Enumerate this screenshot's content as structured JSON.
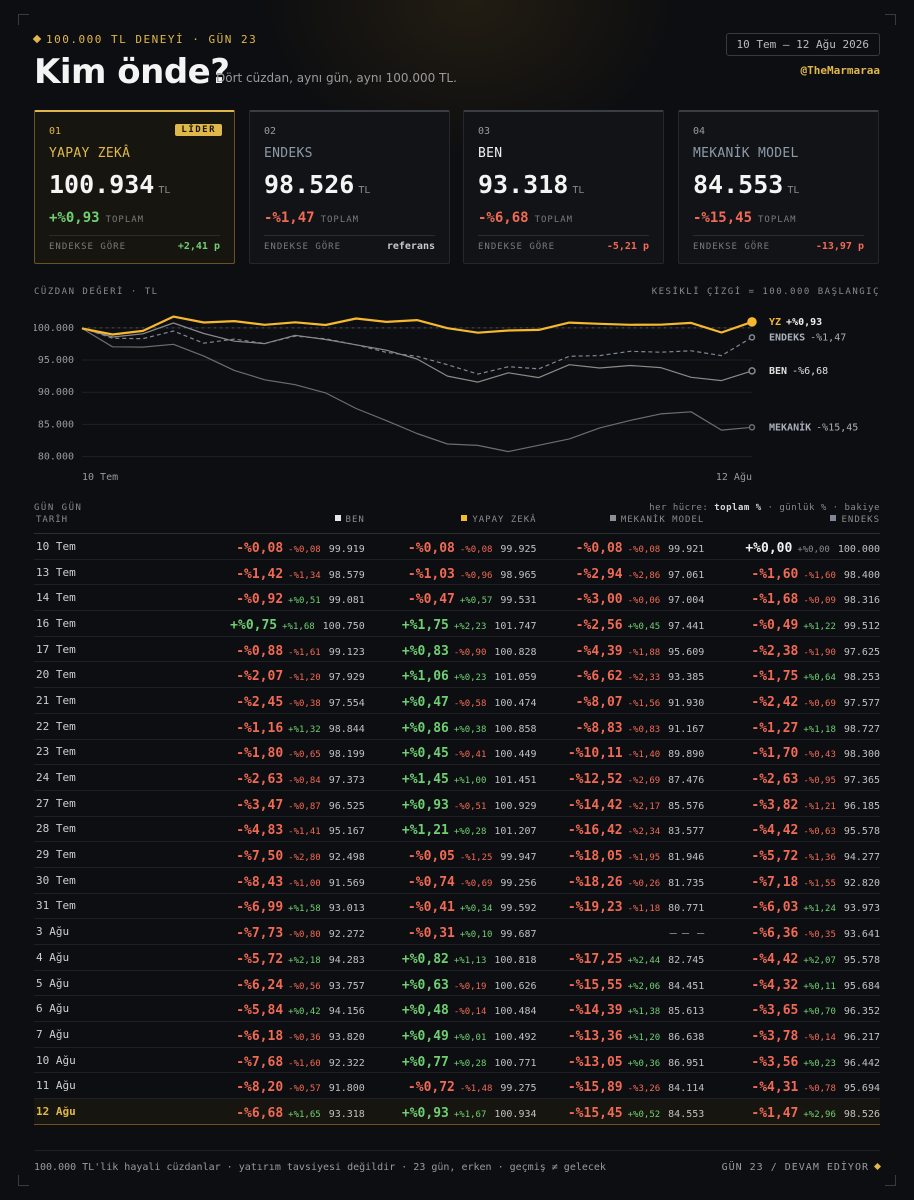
{
  "header": {
    "kicker": "100.000 TL DENEYİ · GÜN 23",
    "title": "Kim önde?",
    "subtitle": "Dört cüzdan, aynı gün, aynı 100.000 TL.",
    "date_range": "10 Tem – 12 Ağu 2026",
    "handle": "@TheMarmaraa"
  },
  "cards": [
    {
      "num": "01",
      "badge": "LİDER",
      "name": "YAPAY ZEKÂ",
      "value": "100.934",
      "unit": "TL",
      "pct": "+%0,93",
      "pct_label": "TOPLAM",
      "foot_label": "ENDEKSE GÖRE",
      "foot_value": "+2,41 p"
    },
    {
      "num": "02",
      "badge": "",
      "name": "ENDEKS",
      "value": "98.526",
      "unit": "TL",
      "pct": "-%1,47",
      "pct_label": "TOPLAM",
      "foot_label": "ENDEKSE GÖRE",
      "foot_value": "referans"
    },
    {
      "num": "03",
      "badge": "",
      "name": "BEN",
      "value": "93.318",
      "unit": "TL",
      "pct": "-%6,68",
      "pct_label": "TOPLAM",
      "foot_label": "ENDEKSE GÖRE",
      "foot_value": "-5,21 p"
    },
    {
      "num": "04",
      "badge": "",
      "name": "MEKANİK MODEL",
      "value": "84.553",
      "unit": "TL",
      "pct": "-%15,45",
      "pct_label": "TOPLAM",
      "foot_label": "ENDEKSE GÖRE",
      "foot_value": "-13,97 p"
    }
  ],
  "chart_labels": {
    "left": "CÜZDAN DEĞERİ · TL",
    "right": "KESİKLİ ÇİZGİ = 100.000 BAŞLANGIÇ"
  },
  "colors": {
    "yz": "#f5b82e",
    "endeks": "#7e8797",
    "ben": "#d4d4d4",
    "mekanik": "#6d6d6d",
    "pos": "#6fcf73",
    "neg": "#f06a55",
    "accent": "#e0b84a"
  },
  "chart_data": {
    "type": "line",
    "x": [
      "10 Tem",
      "13 Tem",
      "14 Tem",
      "16 Tem",
      "17 Tem",
      "20 Tem",
      "21 Tem",
      "22 Tem",
      "23 Tem",
      "24 Tem",
      "27 Tem",
      "28 Tem",
      "29 Tem",
      "30 Tem",
      "31 Tem",
      "3 Ağu",
      "4 Ağu",
      "5 Ağu",
      "6 Ağu",
      "7 Ağu",
      "10 Ağu",
      "11 Ağu",
      "12 Ağu"
    ],
    "x_tick_labels": [
      "10 Tem",
      "12 Ağu"
    ],
    "ylim": [
      79,
      102
    ],
    "y_ticks": [
      80,
      85,
      90,
      95,
      100
    ],
    "y_tick_labels": [
      "80.000",
      "85.000",
      "90.000",
      "95.000",
      "100.000"
    ],
    "baseline": 100,
    "series": [
      {
        "key": "yz",
        "name": "YZ",
        "end_label": "YZ",
        "end_pct": "+%0,93",
        "values": [
          99.925,
          98.965,
          99.531,
          101.747,
          100.828,
          101.059,
          100.474,
          100.858,
          100.449,
          101.451,
          100.929,
          101.207,
          99.947,
          99.256,
          99.592,
          99.687,
          100.818,
          100.626,
          100.484,
          100.492,
          100.771,
          99.275,
          100.934
        ]
      },
      {
        "key": "endeks",
        "name": "ENDEKS",
        "end_label": "ENDEKS",
        "end_pct": "-%1,47",
        "values": [
          100.0,
          98.4,
          98.316,
          99.512,
          97.625,
          98.253,
          97.577,
          98.727,
          98.3,
          97.365,
          96.185,
          95.578,
          94.277,
          92.82,
          93.973,
          93.641,
          95.578,
          95.684,
          96.352,
          96.217,
          96.442,
          95.694,
          98.526
        ]
      },
      {
        "key": "ben",
        "name": "BEN",
        "end_label": "BEN",
        "end_pct": "-%6,68",
        "values": [
          99.919,
          98.579,
          99.081,
          100.75,
          99.123,
          97.929,
          97.554,
          98.844,
          98.199,
          97.373,
          96.525,
          95.167,
          92.498,
          91.569,
          93.013,
          92.272,
          94.283,
          93.757,
          94.156,
          93.82,
          92.322,
          91.8,
          93.318
        ]
      },
      {
        "key": "mekanik",
        "name": "MEKANİK",
        "end_label": "MEKANİK",
        "end_pct": "-%15,45",
        "values": [
          99.921,
          97.061,
          97.004,
          97.441,
          95.609,
          93.385,
          91.93,
          91.167,
          89.89,
          87.476,
          85.576,
          83.577,
          81.946,
          81.735,
          80.771,
          null,
          82.745,
          84.451,
          85.613,
          86.638,
          86.951,
          84.114,
          84.553
        ]
      }
    ]
  },
  "table": {
    "section_label": "GÜN GÜN",
    "legend_prefix": "her hücre:",
    "legend_total": "toplam %",
    "legend_rest": "· günlük % · bakiye",
    "date_header": "TARİH",
    "columns": [
      {
        "key": "ben",
        "label": "BEN",
        "color": "#e6e6e6"
      },
      {
        "key": "yz",
        "label": "YAPAY ZEKÂ",
        "color": "#f5b82e"
      },
      {
        "key": "mek",
        "label": "MEKANİK MODEL",
        "color": "#8a8f99"
      },
      {
        "key": "end",
        "label": "ENDEKS",
        "color": "#7e8797"
      }
    ],
    "rows": [
      {
        "date": "10 Tem",
        "cells": [
          [
            "-%0,08",
            "-%0,08",
            "99.919"
          ],
          [
            "-%0,08",
            "-%0,08",
            "99.925"
          ],
          [
            "-%0,08",
            "-%0,08",
            "99.921"
          ],
          [
            "+%0,00",
            "+%0,00",
            "100.000"
          ]
        ]
      },
      {
        "date": "13 Tem",
        "cells": [
          [
            "-%1,42",
            "-%1,34",
            "98.579"
          ],
          [
            "-%1,03",
            "-%0,96",
            "98.965"
          ],
          [
            "-%2,94",
            "-%2,86",
            "97.061"
          ],
          [
            "-%1,60",
            "-%1,60",
            "98.400"
          ]
        ]
      },
      {
        "date": "14 Tem",
        "cells": [
          [
            "-%0,92",
            "+%0,51",
            "99.081"
          ],
          [
            "-%0,47",
            "+%0,57",
            "99.531"
          ],
          [
            "-%3,00",
            "-%0,06",
            "97.004"
          ],
          [
            "-%1,68",
            "-%0,09",
            "98.316"
          ]
        ]
      },
      {
        "date": "16 Tem",
        "cells": [
          [
            "+%0,75",
            "+%1,68",
            "100.750"
          ],
          [
            "+%1,75",
            "+%2,23",
            "101.747"
          ],
          [
            "-%2,56",
            "+%0,45",
            "97.441"
          ],
          [
            "-%0,49",
            "+%1,22",
            "99.512"
          ]
        ]
      },
      {
        "date": "17 Tem",
        "cells": [
          [
            "-%0,88",
            "-%1,61",
            "99.123"
          ],
          [
            "+%0,83",
            "-%0,90",
            "100.828"
          ],
          [
            "-%4,39",
            "-%1,88",
            "95.609"
          ],
          [
            "-%2,38",
            "-%1,90",
            "97.625"
          ]
        ]
      },
      {
        "date": "20 Tem",
        "cells": [
          [
            "-%2,07",
            "-%1,20",
            "97.929"
          ],
          [
            "+%1,06",
            "+%0,23",
            "101.059"
          ],
          [
            "-%6,62",
            "-%2,33",
            "93.385"
          ],
          [
            "-%1,75",
            "+%0,64",
            "98.253"
          ]
        ]
      },
      {
        "date": "21 Tem",
        "cells": [
          [
            "-%2,45",
            "-%0,38",
            "97.554"
          ],
          [
            "+%0,47",
            "-%0,58",
            "100.474"
          ],
          [
            "-%8,07",
            "-%1,56",
            "91.930"
          ],
          [
            "-%2,42",
            "-%0,69",
            "97.577"
          ]
        ]
      },
      {
        "date": "22 Tem",
        "cells": [
          [
            "-%1,16",
            "+%1,32",
            "98.844"
          ],
          [
            "+%0,86",
            "+%0,38",
            "100.858"
          ],
          [
            "-%8,83",
            "-%0,83",
            "91.167"
          ],
          [
            "-%1,27",
            "+%1,18",
            "98.727"
          ]
        ]
      },
      {
        "date": "23 Tem",
        "cells": [
          [
            "-%1,80",
            "-%0,65",
            "98.199"
          ],
          [
            "+%0,45",
            "-%0,41",
            "100.449"
          ],
          [
            "-%10,11",
            "-%1,40",
            "89.890"
          ],
          [
            "-%1,70",
            "-%0,43",
            "98.300"
          ]
        ]
      },
      {
        "date": "24 Tem",
        "cells": [
          [
            "-%2,63",
            "-%0,84",
            "97.373"
          ],
          [
            "+%1,45",
            "+%1,00",
            "101.451"
          ],
          [
            "-%12,52",
            "-%2,69",
            "87.476"
          ],
          [
            "-%2,63",
            "-%0,95",
            "97.365"
          ]
        ]
      },
      {
        "date": "27 Tem",
        "cells": [
          [
            "-%3,47",
            "-%0,87",
            "96.525"
          ],
          [
            "+%0,93",
            "-%0,51",
            "100.929"
          ],
          [
            "-%14,42",
            "-%2,17",
            "85.576"
          ],
          [
            "-%3,82",
            "-%1,21",
            "96.185"
          ]
        ]
      },
      {
        "date": "28 Tem",
        "cells": [
          [
            "-%4,83",
            "-%1,41",
            "95.167"
          ],
          [
            "+%1,21",
            "+%0,28",
            "101.207"
          ],
          [
            "-%16,42",
            "-%2,34",
            "83.577"
          ],
          [
            "-%4,42",
            "-%0,63",
            "95.578"
          ]
        ]
      },
      {
        "date": "29 Tem",
        "cells": [
          [
            "-%7,50",
            "-%2,80",
            "92.498"
          ],
          [
            "-%0,05",
            "-%1,25",
            "99.947"
          ],
          [
            "-%18,05",
            "-%1,95",
            "81.946"
          ],
          [
            "-%5,72",
            "-%1,36",
            "94.277"
          ]
        ]
      },
      {
        "date": "30 Tem",
        "cells": [
          [
            "-%8,43",
            "-%1,00",
            "91.569"
          ],
          [
            "-%0,74",
            "-%0,69",
            "99.256"
          ],
          [
            "-%18,26",
            "-%0,26",
            "81.735"
          ],
          [
            "-%7,18",
            "-%1,55",
            "92.820"
          ]
        ]
      },
      {
        "date": "31 Tem",
        "cells": [
          [
            "-%6,99",
            "+%1,58",
            "93.013"
          ],
          [
            "-%0,41",
            "+%0,34",
            "99.592"
          ],
          [
            "-%19,23",
            "-%1,18",
            "80.771"
          ],
          [
            "-%6,03",
            "+%1,24",
            "93.973"
          ]
        ]
      },
      {
        "date": "3 Ağu",
        "cells": [
          [
            "-%7,73",
            "-%0,80",
            "92.272"
          ],
          [
            "-%0,31",
            "+%0,10",
            "99.687"
          ],
          [
            "—",
            "—",
            "—"
          ],
          [
            "-%6,36",
            "-%0,35",
            "93.641"
          ]
        ]
      },
      {
        "date": "4 Ağu",
        "cells": [
          [
            "-%5,72",
            "+%2,18",
            "94.283"
          ],
          [
            "+%0,82",
            "+%1,13",
            "100.818"
          ],
          [
            "-%17,25",
            "+%2,44",
            "82.745"
          ],
          [
            "-%4,42",
            "+%2,07",
            "95.578"
          ]
        ]
      },
      {
        "date": "5 Ağu",
        "cells": [
          [
            "-%6,24",
            "-%0,56",
            "93.757"
          ],
          [
            "+%0,63",
            "-%0,19",
            "100.626"
          ],
          [
            "-%15,55",
            "+%2,06",
            "84.451"
          ],
          [
            "-%4,32",
            "+%0,11",
            "95.684"
          ]
        ]
      },
      {
        "date": "6 Ağu",
        "cells": [
          [
            "-%5,84",
            "+%0,42",
            "94.156"
          ],
          [
            "+%0,48",
            "-%0,14",
            "100.484"
          ],
          [
            "-%14,39",
            "+%1,38",
            "85.613"
          ],
          [
            "-%3,65",
            "+%0,70",
            "96.352"
          ]
        ]
      },
      {
        "date": "7 Ağu",
        "cells": [
          [
            "-%6,18",
            "-%0,36",
            "93.820"
          ],
          [
            "+%0,49",
            "+%0,01",
            "100.492"
          ],
          [
            "-%13,36",
            "+%1,20",
            "86.638"
          ],
          [
            "-%3,78",
            "-%0,14",
            "96.217"
          ]
        ]
      },
      {
        "date": "10 Ağu",
        "cells": [
          [
            "-%7,68",
            "-%1,60",
            "92.322"
          ],
          [
            "+%0,77",
            "+%0,28",
            "100.771"
          ],
          [
            "-%13,05",
            "+%0,36",
            "86.951"
          ],
          [
            "-%3,56",
            "+%0,23",
            "96.442"
          ]
        ]
      },
      {
        "date": "11 Ağu",
        "cells": [
          [
            "-%8,20",
            "-%0,57",
            "91.800"
          ],
          [
            "-%0,72",
            "-%1,48",
            "99.275"
          ],
          [
            "-%15,89",
            "-%3,26",
            "84.114"
          ],
          [
            "-%4,31",
            "-%0,78",
            "95.694"
          ]
        ]
      },
      {
        "date": "12 Ağu",
        "cells": [
          [
            "-%6,68",
            "+%1,65",
            "93.318"
          ],
          [
            "+%0,93",
            "+%1,67",
            "100.934"
          ],
          [
            "-%15,45",
            "+%0,52",
            "84.553"
          ],
          [
            "-%1,47",
            "+%2,96",
            "98.526"
          ]
        ]
      }
    ]
  },
  "footer": {
    "left": "100.000 TL'lik hayali cüzdanlar · yatırım tavsiyesi değildir · 23 gün, erken · geçmiş ≠ gelecek",
    "right": "GÜN 23 / DEVAM EDİYOR"
  }
}
